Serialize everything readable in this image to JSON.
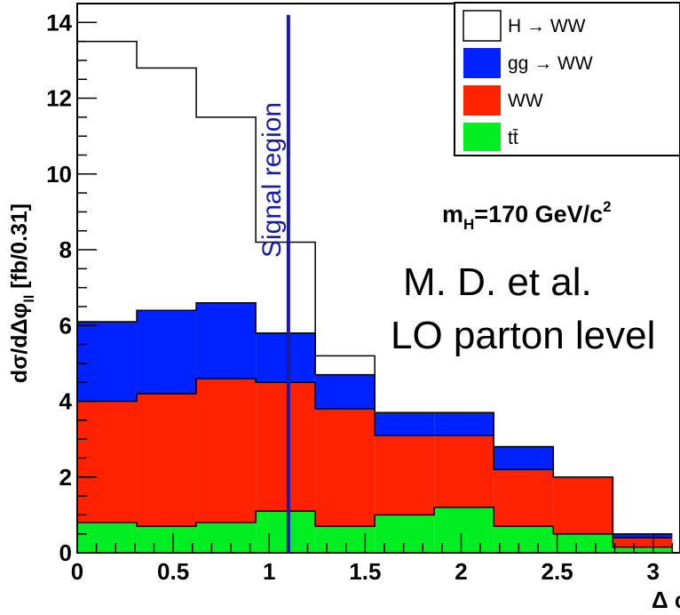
{
  "chart_data": {
    "type": "histogram",
    "stacked": true,
    "bin_edges": [
      0,
      0.31,
      0.62,
      0.93,
      1.24,
      1.55,
      1.86,
      2.17,
      2.48,
      2.79,
      3.1
    ],
    "ylim": [
      0,
      14.5
    ],
    "xlim": [
      0,
      3.14
    ],
    "ylabel": "dσ/dΔφ_ll [fb/0.31]",
    "xlabel": "Δφ_ll",
    "yticks": [
      0,
      2,
      4,
      6,
      8,
      10,
      12,
      14
    ],
    "xticks": [
      0,
      0.5,
      1,
      1.5,
      2,
      2.5,
      3
    ],
    "series": [
      {
        "name": "tt̄",
        "color": "#00ee22",
        "values": [
          0.8,
          0.7,
          0.8,
          1.1,
          0.7,
          1.0,
          1.2,
          0.7,
          0.5,
          0.15
        ]
      },
      {
        "name": "WW",
        "color": "#ff2200",
        "values": [
          3.2,
          3.5,
          3.8,
          3.4,
          3.1,
          2.1,
          1.9,
          1.5,
          1.5,
          0.25
        ]
      },
      {
        "name": "gg → WW",
        "color": "#0022ff",
        "values": [
          2.1,
          2.2,
          2.0,
          1.3,
          0.9,
          0.6,
          0.6,
          0.6,
          0.0,
          0.1
        ]
      },
      {
        "name": "H → WW",
        "color": "#ffffff",
        "values": [
          7.4,
          6.4,
          4.9,
          2.4,
          0.5,
          0.0,
          0.0,
          0.0,
          0.0,
          0.0
        ]
      }
    ],
    "signal_region_x": 1.1,
    "legend_position": "top-right",
    "annotations": {
      "signal_region": "Signal region",
      "mass_prefix": "m",
      "mass_sub": "H",
      "mass_value": "=170 GeV/c",
      "mass_sup": "2",
      "author": "M. D. et al.",
      "level": "LO parton level"
    }
  }
}
